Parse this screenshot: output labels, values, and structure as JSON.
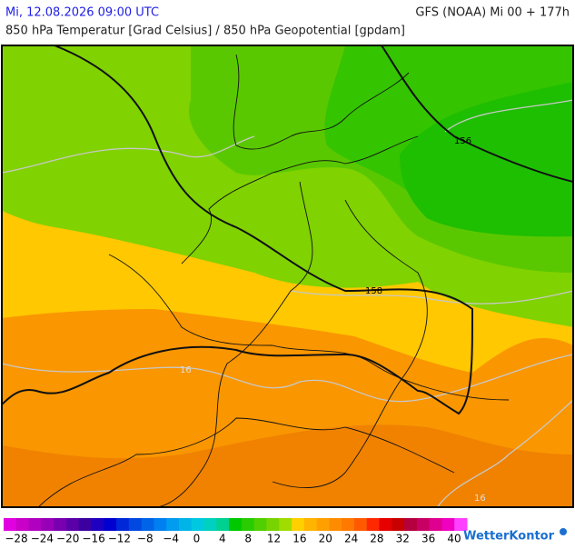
{
  "header": {
    "datetime": "Mi, 12.08.2026 09:00 UTC",
    "model": "GFS (NOAA) Mi 00 + 177h",
    "subtitle": "850 hPa Temperatur [Grad Celsius] / 850 hPa Geopotential [gpdam]"
  },
  "map": {
    "contour_labels": [
      "156",
      "158",
      "16",
      "16"
    ]
  },
  "legend": {
    "ticks": [
      "−28",
      "−24",
      "−20",
      "−16",
      "−12",
      "−8",
      "−4",
      "0",
      "4",
      "8",
      "12",
      "16",
      "20",
      "24",
      "28",
      "32",
      "36",
      "40"
    ],
    "colors": [
      "#e000e0",
      "#c800c8",
      "#b000c0",
      "#9800b8",
      "#7800b0",
      "#5a00a8",
      "#3c00a0",
      "#1e00c0",
      "#0000d0",
      "#0028d8",
      "#0048e0",
      "#0064e8",
      "#0080f0",
      "#009cf0",
      "#00b4e8",
      "#00c8e0",
      "#00d0c0",
      "#00d090",
      "#00c800",
      "#28cc00",
      "#50d000",
      "#78d400",
      "#a0dc00",
      "#ffd000",
      "#ffb400",
      "#ffa000",
      "#ff8c00",
      "#ff7800",
      "#ff5a00",
      "#ff2800",
      "#e60000",
      "#c80000",
      "#b4003c",
      "#c80064",
      "#e00090",
      "#f000c0",
      "#ff40ff"
    ]
  },
  "brand": "WetterKontor"
}
